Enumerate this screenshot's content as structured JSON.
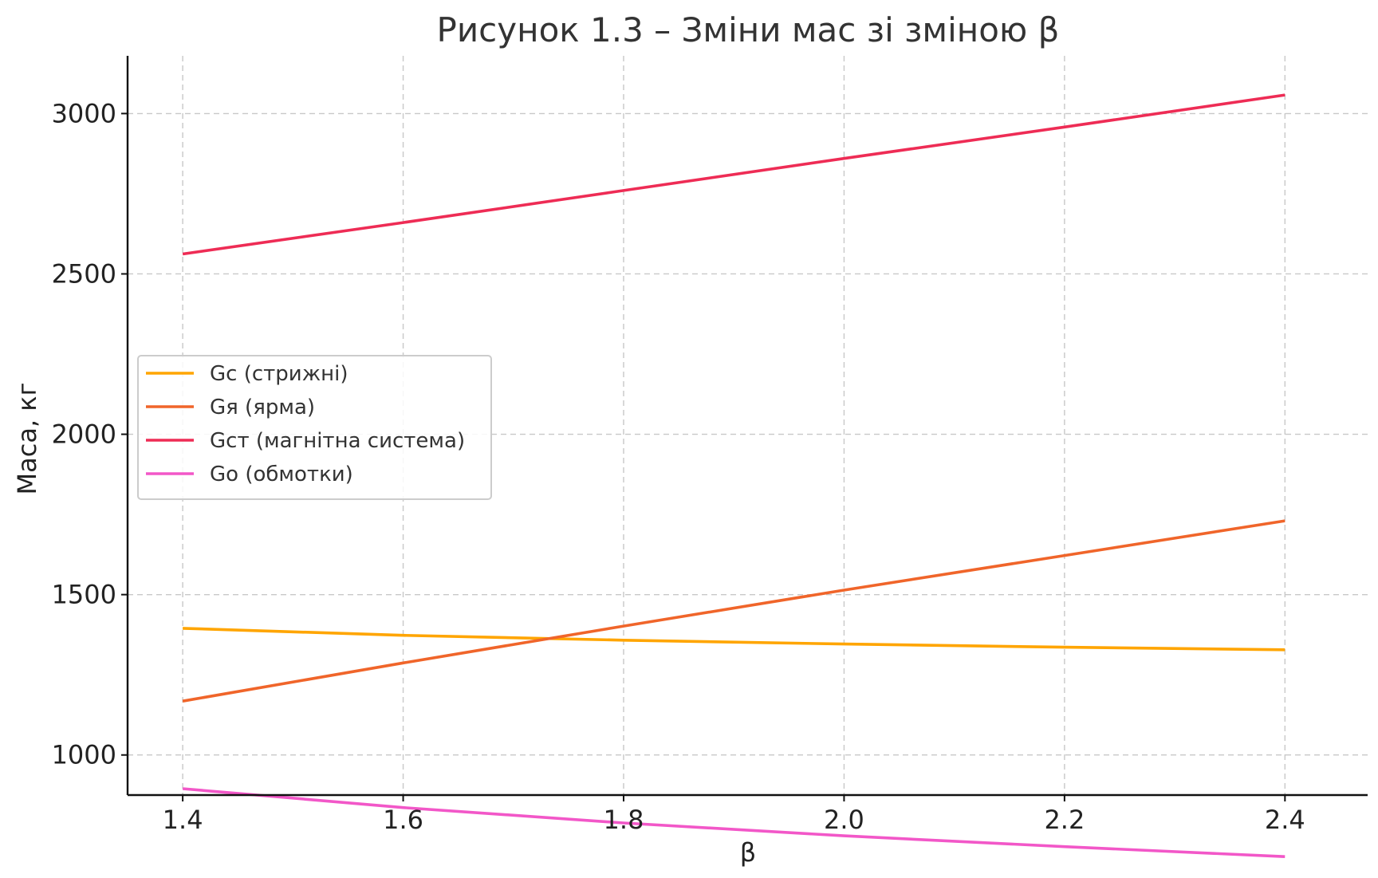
{
  "chart_data": {
    "type": "line",
    "title": "Рисунок 1.3 – Зміни мас зі зміною β",
    "xlabel": "β",
    "ylabel": "Маса, кг",
    "xlim": [
      1.35,
      2.475
    ],
    "ylim": [
      875,
      3180
    ],
    "x_ticks": [
      1.4,
      1.6,
      1.8,
      2.0,
      2.2,
      2.4
    ],
    "x_tick_labels": [
      "1.4",
      "1.6",
      "1.8",
      "2.0",
      "2.2",
      "2.4"
    ],
    "y_ticks": [
      1000,
      1500,
      2000,
      2500,
      3000
    ],
    "y_tick_labels": [
      "1000",
      "1500",
      "2000",
      "2500",
      "3000"
    ],
    "grid": true,
    "legend_position": "center-left",
    "x": [
      1.4,
      1.6,
      1.8,
      2.0,
      2.2,
      2.4
    ],
    "series": [
      {
        "name": "Gc (стрижні)",
        "color": "#FFA500",
        "values": [
          1395,
          1373,
          1358,
          1346,
          1336,
          1328
        ]
      },
      {
        "name": "Gя (ярма)",
        "color": "#F0652A",
        "values": [
          1168,
          1287,
          1402,
          1514,
          1622,
          1730
        ]
      },
      {
        "name": "Gст (магнітна система)",
        "color": "#EE2C55",
        "values": [
          2562,
          2660,
          2760,
          2860,
          2958,
          3058
        ]
      },
      {
        "name": "Go (обмотки)",
        "color": "#F257C8",
        "values": [
          895,
          836,
          788,
          748,
          714,
          683
        ]
      }
    ]
  }
}
